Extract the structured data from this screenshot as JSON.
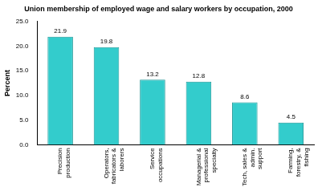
{
  "chart_data": {
    "type": "bar",
    "title": "Union membership of employed wage and salary workers by occupation, 2000",
    "y_label": "Percent",
    "categories": [
      "Precision production",
      "Operators, fabricators & laborers",
      "Service occupations",
      "Managerial & professional specialty",
      "Tech, sales & admin. support",
      "Farming, forestry, & fishing"
    ],
    "values": [
      21.9,
      19.8,
      13.2,
      12.8,
      8.6,
      4.5
    ],
    "color": "#33cccc",
    "ylim": [
      0,
      25
    ],
    "yticks": [
      {
        "value": 0,
        "label": "0.0"
      },
      {
        "value": 5,
        "label": "5.0"
      },
      {
        "value": 10,
        "label": "10.0"
      },
      {
        "value": 15,
        "label": "15.0"
      },
      {
        "value": 20,
        "label": "20.0"
      },
      {
        "value": 25,
        "label": "25.0"
      }
    ],
    "grid": false,
    "data_labels": true
  }
}
